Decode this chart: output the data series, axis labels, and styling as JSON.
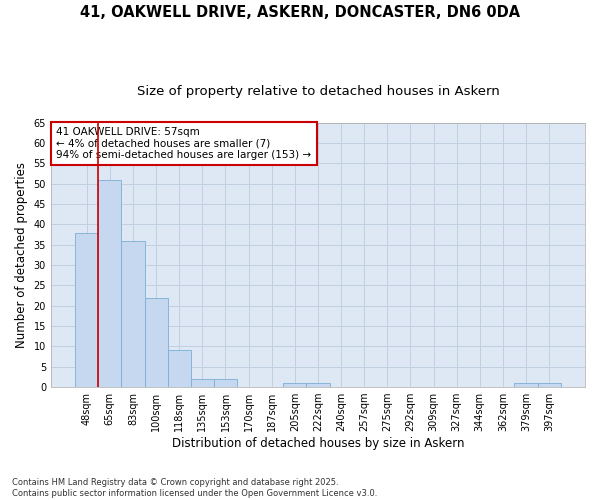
{
  "title1": "41, OAKWELL DRIVE, ASKERN, DONCASTER, DN6 0DA",
  "title2": "Size of property relative to detached houses in Askern",
  "xlabel": "Distribution of detached houses by size in Askern",
  "ylabel": "Number of detached properties",
  "categories": [
    "48sqm",
    "65sqm",
    "83sqm",
    "100sqm",
    "118sqm",
    "135sqm",
    "153sqm",
    "170sqm",
    "187sqm",
    "205sqm",
    "222sqm",
    "240sqm",
    "257sqm",
    "275sqm",
    "292sqm",
    "309sqm",
    "327sqm",
    "344sqm",
    "362sqm",
    "379sqm",
    "397sqm"
  ],
  "values": [
    38,
    51,
    36,
    22,
    9,
    2,
    2,
    0,
    0,
    1,
    1,
    0,
    0,
    0,
    0,
    0,
    0,
    0,
    0,
    1,
    1
  ],
  "bar_color": "#c5d8ef",
  "bar_edge_color": "#7bafd4",
  "red_line_x": 0.5,
  "annotation_text": "41 OAKWELL DRIVE: 57sqm\n← 4% of detached houses are smaller (7)\n94% of semi-detached houses are larger (153) →",
  "annotation_box_facecolor": "#ffffff",
  "annotation_box_edgecolor": "#cc0000",
  "ylim": [
    0,
    65
  ],
  "yticks": [
    0,
    5,
    10,
    15,
    20,
    25,
    30,
    35,
    40,
    45,
    50,
    55,
    60,
    65
  ],
  "grid_color": "#c0d0e0",
  "background_color": "#dde8f4",
  "footnote": "Contains HM Land Registry data © Crown copyright and database right 2025.\nContains public sector information licensed under the Open Government Licence v3.0.",
  "title_fontsize": 10.5,
  "subtitle_fontsize": 9.5,
  "axis_label_fontsize": 8.5,
  "tick_fontsize": 7,
  "annot_fontsize": 7.5
}
